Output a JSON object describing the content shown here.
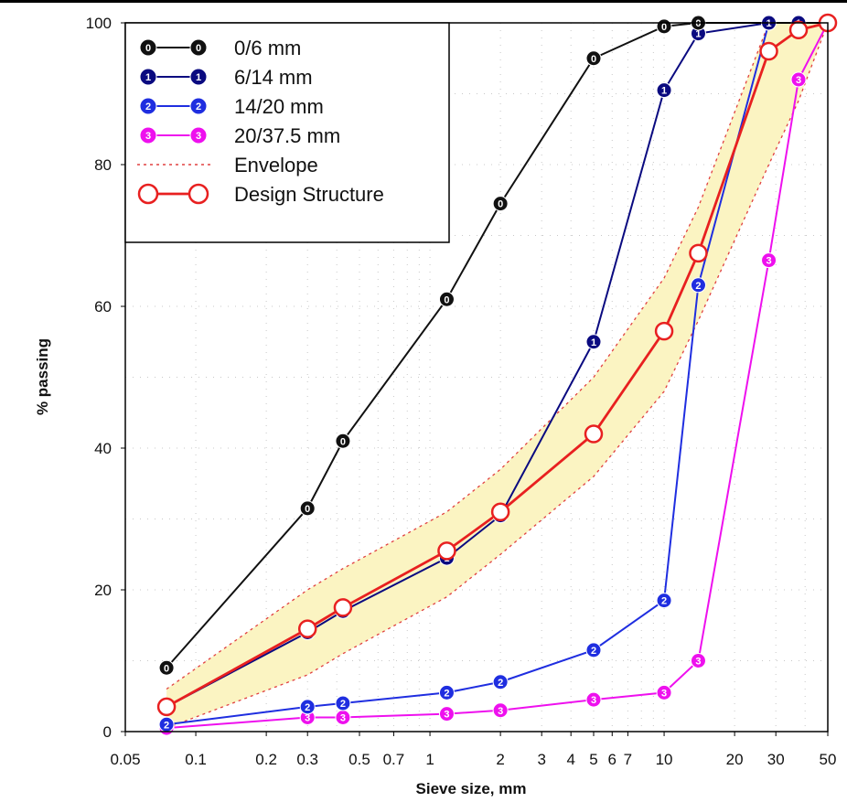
{
  "chart_data": {
    "type": "line",
    "xlabel": "Sieve size, mm",
    "ylabel": "% passing",
    "x_scale": "log",
    "xlim": [
      0.05,
      50
    ],
    "ylim": [
      0,
      100
    ],
    "grid": true,
    "legend_placement": "top-left",
    "x_ticks": [
      {
        "value": 0.05,
        "label": "0.05"
      },
      {
        "value": 0.1,
        "label": "0.1"
      },
      {
        "value": 0.2,
        "label": "0.2"
      },
      {
        "value": 0.3,
        "label": "0.3"
      },
      {
        "value": 0.5,
        "label": "0.5"
      },
      {
        "value": 0.7,
        "label": "0.7"
      },
      {
        "value": 1,
        "label": "1"
      },
      {
        "value": 2,
        "label": "2"
      },
      {
        "value": 3,
        "label": "3"
      },
      {
        "value": 4,
        "label": "4"
      },
      {
        "value": 5,
        "label": "5"
      },
      {
        "value": 6,
        "label": "6"
      },
      {
        "value": 7,
        "label": "7"
      },
      {
        "value": 10,
        "label": "10"
      },
      {
        "value": 20,
        "label": "20"
      },
      {
        "value": 30,
        "label": "30"
      },
      {
        "value": 50,
        "label": "50"
      }
    ],
    "y_ticks": [
      {
        "value": 0,
        "label": "0"
      },
      {
        "value": 20,
        "label": "20"
      },
      {
        "value": 40,
        "label": "40"
      },
      {
        "value": 60,
        "label": "60"
      },
      {
        "value": 80,
        "label": "80"
      },
      {
        "value": 100,
        "label": "100"
      }
    ],
    "series": [
      {
        "name": "0/6 mm",
        "marker": "0",
        "color": "#111111",
        "marker_fill": "#111111",
        "marker_text": "#ffffff",
        "points": [
          [
            0.075,
            9
          ],
          [
            0.3,
            31.5
          ],
          [
            0.425,
            41
          ],
          [
            1.18,
            61
          ],
          [
            2,
            74.5
          ],
          [
            5,
            95
          ],
          [
            10,
            99.5
          ],
          [
            14,
            100
          ],
          [
            50,
            100
          ]
        ]
      },
      {
        "name": "6/14 mm",
        "marker": "1",
        "color": "#0a0a80",
        "marker_fill": "#0a0a80",
        "marker_text": "#ffffff",
        "points": [
          [
            0.075,
            3.5
          ],
          [
            0.3,
            14
          ],
          [
            0.425,
            17
          ],
          [
            1.18,
            24.5
          ],
          [
            2,
            30.5
          ],
          [
            5,
            55
          ],
          [
            10,
            90.5
          ],
          [
            14,
            98.5
          ],
          [
            28,
            100
          ],
          [
            37.5,
            100
          ],
          [
            50,
            100
          ]
        ]
      },
      {
        "name": "14/20 mm",
        "marker": "2",
        "color": "#1f2ee0",
        "marker_fill": "#1f2ee0",
        "marker_text": "#ffffff",
        "points": [
          [
            0.075,
            1
          ],
          [
            0.3,
            3.5
          ],
          [
            0.425,
            4
          ],
          [
            1.18,
            5.5
          ],
          [
            2,
            7
          ],
          [
            5,
            11.5
          ],
          [
            10,
            18.5
          ],
          [
            14,
            63
          ],
          [
            28,
            100
          ],
          [
            50,
            100
          ]
        ]
      },
      {
        "name": "20/37.5 mm",
        "marker": "3",
        "color": "#ee10ee",
        "marker_fill": "#ee10ee",
        "marker_text": "#ffffff",
        "points": [
          [
            0.075,
            0.5
          ],
          [
            0.3,
            2
          ],
          [
            0.425,
            2
          ],
          [
            1.18,
            2.5
          ],
          [
            2,
            3
          ],
          [
            5,
            4.5
          ],
          [
            10,
            5.5
          ],
          [
            14,
            10
          ],
          [
            28,
            66.5
          ],
          [
            37.5,
            92
          ],
          [
            50,
            100
          ]
        ]
      },
      {
        "name": "Envelope",
        "marker": "",
        "color": "#e04040",
        "dashed": true,
        "upper": [
          [
            0.075,
            6
          ],
          [
            0.3,
            20
          ],
          [
            0.425,
            23
          ],
          [
            1.18,
            31
          ],
          [
            2,
            37
          ],
          [
            5,
            50
          ],
          [
            10,
            64
          ],
          [
            14,
            74
          ],
          [
            28,
            100
          ],
          [
            50,
            100
          ]
        ],
        "lower": [
          [
            0.075,
            0.5
          ],
          [
            0.3,
            8
          ],
          [
            0.425,
            11
          ],
          [
            1.18,
            19
          ],
          [
            2,
            25
          ],
          [
            5,
            36
          ],
          [
            10,
            48
          ],
          [
            14,
            58
          ],
          [
            28,
            80
          ],
          [
            37.5,
            89
          ],
          [
            50,
            100
          ]
        ],
        "fill": "#fbf4c2"
      },
      {
        "name": "Design Structure",
        "marker": "circle",
        "color": "#e82020",
        "marker_fill": "#ffffff",
        "points": [
          [
            0.075,
            3.5
          ],
          [
            0.3,
            14.5
          ],
          [
            0.425,
            17.5
          ],
          [
            1.18,
            25.5
          ],
          [
            2,
            31
          ],
          [
            5,
            42
          ],
          [
            10,
            56.5
          ],
          [
            14,
            67.5
          ],
          [
            28,
            96
          ],
          [
            37.5,
            99
          ],
          [
            50,
            100
          ]
        ]
      }
    ]
  }
}
